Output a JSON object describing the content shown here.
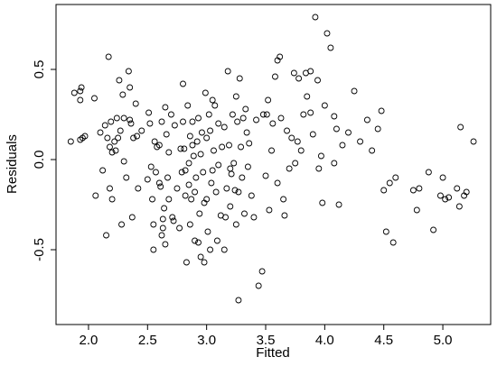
{
  "chart_data": {
    "type": "scatter",
    "x_label": "Fitted",
    "y_label": "Residuals",
    "color": "#000000",
    "xlim": [
      1.725,
      5.405
    ],
    "ylim": [
      -0.915,
      0.86
    ],
    "xticks": [
      {
        "value": 2,
        "label": "2.0"
      },
      {
        "value": 2.5,
        "label": "2.5"
      },
      {
        "value": 3,
        "label": "3.0"
      },
      {
        "value": 3.5,
        "label": "3.5"
      },
      {
        "value": 4,
        "label": "4.0"
      },
      {
        "value": 4.5,
        "label": "4.5"
      },
      {
        "value": 5,
        "label": "5.0"
      }
    ],
    "yticks": [
      {
        "value": -0.5,
        "label": "-0.5"
      },
      {
        "value": 0,
        "label": "0.0"
      },
      {
        "value": 0.5,
        "label": "0.5"
      }
    ],
    "x": [
      1.85,
      1.88,
      1.93,
      1.94,
      1.93,
      1.95,
      1.97,
      1.93,
      2.05,
      2.06,
      2.1,
      2.12,
      2.14,
      2.15,
      2.17,
      2.16,
      2.18,
      2.18,
      2.19,
      2.2,
      2.22,
      2.23,
      2.24,
      2.2,
      2.25,
      2.26,
      2.27,
      2.28,
      2.29,
      2.3,
      2.3,
      2.32,
      2.34,
      2.35,
      2.35,
      2.36,
      2.37,
      2.38,
      2.4,
      2.41,
      2.42,
      2.45,
      2.5,
      2.51,
      2.52,
      2.53,
      2.54,
      2.55,
      2.55,
      2.56,
      2.57,
      2.58,
      2.6,
      2.6,
      2.61,
      2.62,
      2.62,
      2.63,
      2.63,
      2.64,
      2.65,
      2.65,
      2.66,
      2.67,
      2.68,
      2.68,
      2.7,
      2.71,
      2.72,
      2.73,
      2.75,
      2.77,
      2.78,
      2.79,
      2.8,
      2.8,
      2.81,
      2.82,
      2.82,
      2.83,
      2.84,
      2.85,
      2.85,
      2.86,
      2.86,
      2.87,
      2.88,
      2.88,
      2.89,
      2.9,
      2.9,
      2.91,
      2.92,
      2.93,
      2.93,
      2.94,
      2.95,
      2.95,
      2.96,
      2.97,
      2.98,
      2.98,
      2.99,
      3.0,
      3.0,
      3.01,
      3.02,
      3.03,
      3.03,
      3.04,
      3.05,
      3.05,
      3.06,
      3.07,
      3.08,
      3.09,
      3.1,
      3.1,
      3.12,
      3.13,
      3.15,
      3.15,
      3.16,
      3.17,
      3.18,
      3.19,
      3.2,
      3.2,
      3.21,
      3.22,
      3.23,
      3.24,
      3.25,
      3.25,
      3.26,
      3.27,
      3.27,
      3.28,
      3.29,
      3.3,
      3.31,
      3.32,
      3.33,
      3.34,
      3.35,
      3.36,
      3.38,
      3.4,
      3.42,
      3.44,
      3.47,
      3.48,
      3.5,
      3.51,
      3.52,
      3.53,
      3.55,
      3.56,
      3.58,
      3.6,
      3.6,
      3.62,
      3.63,
      3.65,
      3.66,
      3.68,
      3.7,
      3.72,
      3.74,
      3.75,
      3.77,
      3.78,
      3.8,
      3.82,
      3.84,
      3.85,
      3.88,
      3.88,
      3.9,
      3.92,
      3.94,
      3.95,
      3.97,
      3.98,
      4.0,
      4.02,
      4.05,
      4.08,
      4.08,
      4.1,
      4.12,
      4.15,
      4.2,
      4.25,
      4.3,
      4.36,
      4.4,
      4.45,
      4.48,
      4.5,
      4.52,
      4.55,
      4.58,
      4.6,
      4.75,
      4.78,
      4.8,
      4.88,
      4.92,
      4.98,
      5.0,
      5.02,
      5.05,
      5.12,
      5.14,
      5.15,
      5.18,
      5.2,
      5.26
    ],
    "values": [
      0.1,
      0.37,
      0.38,
      0.4,
      0.33,
      0.12,
      0.13,
      0.11,
      0.34,
      -0.2,
      0.15,
      -0.06,
      0.19,
      -0.42,
      0.57,
      0.12,
      0.07,
      -0.16,
      0.21,
      0.04,
      0.1,
      0.05,
      0.23,
      -0.22,
      0.12,
      0.44,
      0.16,
      -0.36,
      0.36,
      -0.01,
      0.23,
      -0.1,
      0.49,
      0.4,
      0.22,
      0.2,
      -0.32,
      0.12,
      0.31,
      0.13,
      -0.16,
      0.16,
      -0.11,
      0.26,
      0.2,
      -0.04,
      -0.22,
      -0.36,
      -0.5,
      0.1,
      -0.07,
      0.07,
      0.08,
      -0.13,
      -0.15,
      0.21,
      -0.42,
      -0.38,
      -0.33,
      -0.27,
      -0.47,
      0.29,
      0.14,
      -0.1,
      -0.22,
      0.04,
      0.25,
      -0.32,
      -0.34,
      0.19,
      -0.16,
      -0.38,
      0.06,
      -0.07,
      0.42,
      0.21,
      0.06,
      -0.2,
      -0.06,
      -0.57,
      0.3,
      -0.02,
      -0.14,
      0.13,
      -0.36,
      -0.22,
      0.21,
      0.08,
      0.02,
      -0.18,
      -0.45,
      -0.1,
      0.1,
      0.23,
      -0.46,
      -0.3,
      0.03,
      -0.54,
      0.15,
      -0.07,
      -0.24,
      -0.57,
      0.37,
      0.12,
      -0.22,
      -0.4,
      0.25,
      -0.5,
      0.16,
      -0.13,
      0.33,
      -0.06,
      0.05,
      0.3,
      -0.18,
      -0.45,
      0.2,
      -0.03,
      -0.31,
      0.07,
      0.18,
      -0.5,
      -0.32,
      -0.16,
      0.49,
      0.08,
      -0.05,
      -0.26,
      -0.08,
      0.25,
      -0.02,
      -0.17,
      0.35,
      -0.36,
      0.21,
      -0.18,
      -0.78,
      0.45,
      0.07,
      -0.1,
      0.23,
      -0.3,
      0.28,
      0.15,
      -0.04,
      0.09,
      -0.2,
      -0.32,
      0.22,
      -0.7,
      -0.62,
      0.25,
      -0.09,
      0.25,
      0.33,
      -0.28,
      0.05,
      0.2,
      0.46,
      -0.13,
      0.55,
      0.57,
      0.23,
      -0.22,
      -0.31,
      0.16,
      -0.05,
      0.12,
      0.48,
      -0.02,
      0.1,
      0.45,
      0.05,
      0.25,
      0.48,
      0.35,
      0.49,
      0.26,
      0.14,
      0.79,
      0.44,
      -0.05,
      0.02,
      -0.24,
      0.3,
      0.7,
      0.62,
      0.24,
      -0.02,
      0.17,
      -0.25,
      0.08,
      0.15,
      0.38,
      0.1,
      0.22,
      0.05,
      0.17,
      0.27,
      -0.17,
      -0.4,
      -0.13,
      -0.46,
      -0.1,
      -0.17,
      -0.28,
      -0.16,
      -0.07,
      -0.39,
      -0.2,
      -0.1,
      -0.22,
      -0.21,
      -0.16,
      -0.26,
      0.18,
      -0.2,
      -0.18,
      0.1
    ]
  }
}
